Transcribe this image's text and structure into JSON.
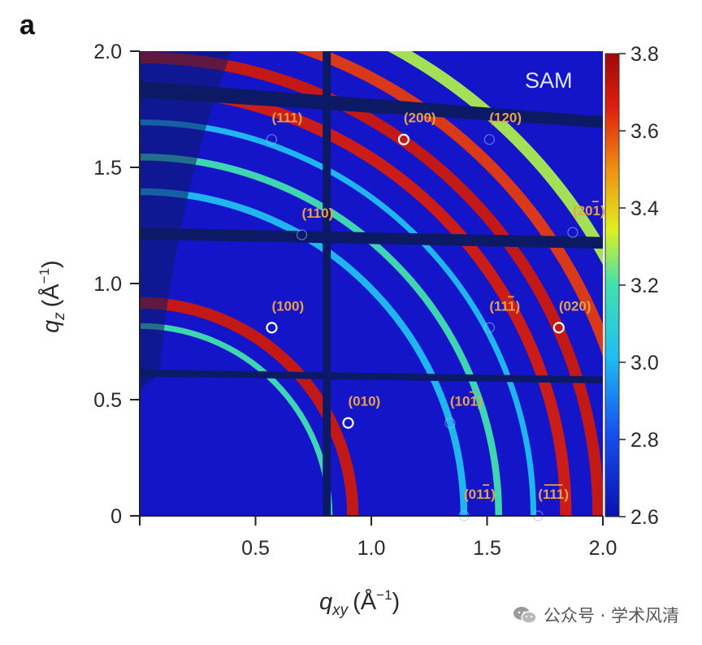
{
  "panel_label": "a",
  "sample_label": "SAM",
  "watermark": "公众号 · 学术风清",
  "colors": {
    "background": "#1414c8",
    "gap": "#0c1a66",
    "ring_low": "#27c8f0",
    "ring_high": "#b01010"
  },
  "chart_data": {
    "type": "heatmap",
    "title": "",
    "xlabel": "q",
    "xlabel_sub": "xy",
    "xlabel_unit": "(Å",
    "xlabel_unit_sup": "−1",
    "xlabel_unit_close": ")",
    "ylabel": "q",
    "ylabel_sub": "z",
    "ylabel_unit": "(Å",
    "ylabel_unit_sup": "−1",
    "ylabel_unit_close": ")",
    "xlim": [
      0,
      2.0
    ],
    "ylim": [
      0,
      2.0
    ],
    "x_ticks": [
      {
        "v": 0.5,
        "label": "0.5"
      },
      {
        "v": 1.0,
        "label": "1.0"
      },
      {
        "v": 1.5,
        "label": "1.5"
      },
      {
        "v": 2.0,
        "label": "2.0"
      }
    ],
    "y_ticks": [
      {
        "v": 0,
        "label": "0"
      },
      {
        "v": 0.5,
        "label": "0.5"
      },
      {
        "v": 1.0,
        "label": "1.0"
      },
      {
        "v": 1.5,
        "label": "1.5"
      },
      {
        "v": 2.0,
        "label": "2.0"
      }
    ],
    "colorbar": {
      "range": [
        2.6,
        3.8
      ],
      "ticks": [
        {
          "v": 3.8,
          "label": "3.8"
        },
        {
          "v": 3.6,
          "label": "3.6"
        },
        {
          "v": 3.4,
          "label": "3.4"
        },
        {
          "v": 3.2,
          "label": "3.2"
        },
        {
          "v": 3.0,
          "label": "3.0"
        },
        {
          "v": 2.8,
          "label": "2.8"
        },
        {
          "v": 2.6,
          "label": "2.6"
        }
      ]
    },
    "rings": [
      {
        "q": 0.92,
        "width": 0.05,
        "intensity": 0.92
      },
      {
        "q": 0.82,
        "width": 0.025,
        "intensity": 0.45
      },
      {
        "q": 1.4,
        "width": 0.03,
        "intensity": 0.3
      },
      {
        "q": 1.55,
        "width": 0.03,
        "intensity": 0.45
      },
      {
        "q": 1.7,
        "width": 0.025,
        "intensity": 0.3
      },
      {
        "q": 1.84,
        "width": 0.05,
        "intensity": 0.9
      },
      {
        "q": 1.98,
        "width": 0.05,
        "intensity": 0.92
      },
      {
        "q": 2.14,
        "width": 0.05,
        "intensity": 0.85
      },
      {
        "q": 2.3,
        "width": 0.05,
        "intensity": 0.55
      }
    ],
    "peaks": [
      {
        "label": "(111)",
        "overbar": "",
        "x": 0.57,
        "y": 1.62,
        "marker": "faint"
      },
      {
        "label": "(200)",
        "overbar": "",
        "x": 1.14,
        "y": 1.62,
        "marker": "bright"
      },
      {
        "label": "(120)",
        "overbar": "",
        "x": 1.51,
        "y": 1.62,
        "marker": "faint"
      },
      {
        "label": "(201)",
        "overbar": "1",
        "x": 1.87,
        "y": 1.22,
        "marker": "faint"
      },
      {
        "label": "(110)",
        "overbar": "",
        "x": 0.7,
        "y": 1.21,
        "marker": "faint"
      },
      {
        "label": "(100)",
        "overbar": "",
        "x": 0.57,
        "y": 0.81,
        "marker": "bright"
      },
      {
        "label": "(111)",
        "overbar": "last",
        "x": 1.51,
        "y": 0.81,
        "marker": "faint"
      },
      {
        "label": "(020)",
        "overbar": "",
        "x": 1.81,
        "y": 0.81,
        "marker": "bright"
      },
      {
        "label": "(010)",
        "overbar": "",
        "x": 0.9,
        "y": 0.4,
        "marker": "bright"
      },
      {
        "label": "(101)",
        "overbar": "last",
        "x": 1.34,
        "y": 0.4,
        "marker": "faint"
      },
      {
        "label": "(011)",
        "overbar": "last",
        "x": 1.4,
        "y": 0.0,
        "marker": "faint"
      },
      {
        "label": "(111)",
        "overbar": "all",
        "x": 1.72,
        "y": 0.0,
        "marker": "faint"
      }
    ]
  }
}
